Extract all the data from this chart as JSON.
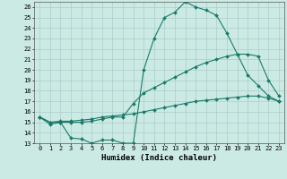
{
  "xlabel": "Humidex (Indice chaleur)",
  "bg_color": "#cceae4",
  "grid_color": "#aacccc",
  "line_color": "#1a7a6a",
  "xlim": [
    -0.5,
    23.5
  ],
  "ylim": [
    13,
    26.5
  ],
  "xticks": [
    0,
    1,
    2,
    3,
    4,
    5,
    6,
    7,
    8,
    9,
    10,
    11,
    12,
    13,
    14,
    15,
    16,
    17,
    18,
    19,
    20,
    21,
    22,
    23
  ],
  "yticks": [
    13,
    14,
    15,
    16,
    17,
    18,
    19,
    20,
    21,
    22,
    23,
    24,
    25,
    26
  ],
  "curve1_x": [
    0,
    1,
    2,
    3,
    4,
    5,
    6,
    7,
    8,
    9,
    10,
    11,
    12,
    13,
    14,
    15,
    16,
    17,
    18,
    19,
    20,
    21,
    22,
    23
  ],
  "curve1_y": [
    15.5,
    14.8,
    15.0,
    13.5,
    13.4,
    13.0,
    13.3,
    13.3,
    13.0,
    13.0,
    20.0,
    23.0,
    25.0,
    25.5,
    26.5,
    26.0,
    25.7,
    25.2,
    23.5,
    21.5,
    19.5,
    18.5,
    17.5,
    17.0
  ],
  "curve2_x": [
    0,
    1,
    2,
    3,
    4,
    5,
    6,
    7,
    8,
    9,
    10,
    11,
    12,
    13,
    14,
    15,
    16,
    17,
    18,
    19,
    20,
    21,
    22,
    23
  ],
  "curve2_y": [
    15.5,
    15.0,
    15.0,
    15.0,
    15.0,
    15.1,
    15.3,
    15.5,
    15.5,
    16.8,
    17.8,
    18.3,
    18.8,
    19.3,
    19.8,
    20.3,
    20.7,
    21.0,
    21.3,
    21.5,
    21.5,
    21.3,
    19.0,
    17.5
  ],
  "curve3_x": [
    0,
    1,
    2,
    3,
    4,
    5,
    6,
    7,
    8,
    9,
    10,
    11,
    12,
    13,
    14,
    15,
    16,
    17,
    18,
    19,
    20,
    21,
    22,
    23
  ],
  "curve3_y": [
    15.5,
    15.0,
    15.1,
    15.1,
    15.2,
    15.3,
    15.5,
    15.6,
    15.7,
    15.8,
    16.0,
    16.2,
    16.4,
    16.6,
    16.8,
    17.0,
    17.1,
    17.2,
    17.3,
    17.4,
    17.5,
    17.5,
    17.3,
    17.0
  ],
  "tick_fontsize": 5.0,
  "xlabel_fontsize": 6.5
}
